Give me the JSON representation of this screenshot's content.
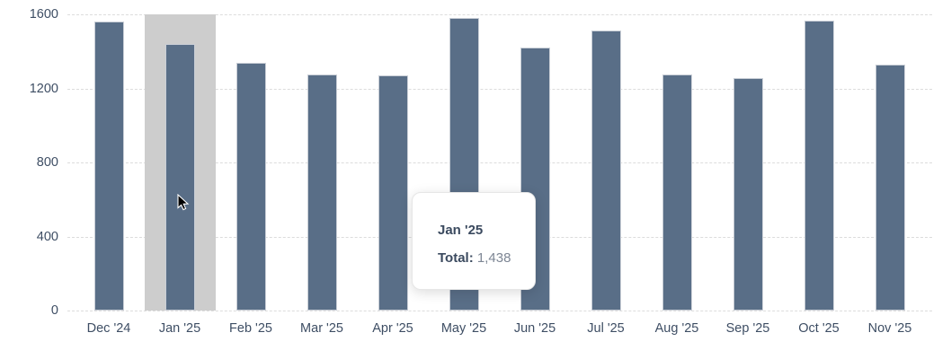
{
  "chart_data": {
    "type": "bar",
    "title": "",
    "xlabel": "",
    "ylabel": "",
    "categories": [
      "Dec '24",
      "Jan '25",
      "Feb '25",
      "Mar '25",
      "Apr '25",
      "May '25",
      "Jun '25",
      "Jul '25",
      "Aug '25",
      "Sep '25",
      "Oct '25",
      "Nov '25"
    ],
    "values": [
      1560,
      1438,
      1340,
      1275,
      1270,
      1580,
      1420,
      1515,
      1275,
      1255,
      1565,
      1330
    ],
    "y_ticks": [
      0,
      400,
      800,
      1200,
      1600
    ],
    "ylim": [
      0,
      1600
    ],
    "grid": "horizontal-dashed",
    "legend": "none",
    "highlighted_index": 1,
    "colors": {
      "bar_fill": "#596e87",
      "bar_border": "#c9ced6",
      "highlight_band": "#cdcdcd",
      "gridline": "#dcdcdc",
      "axis_text": "#3e4e64"
    }
  },
  "tooltip": {
    "title": "Jan '25",
    "label": "Total:",
    "value": "1,438"
  }
}
